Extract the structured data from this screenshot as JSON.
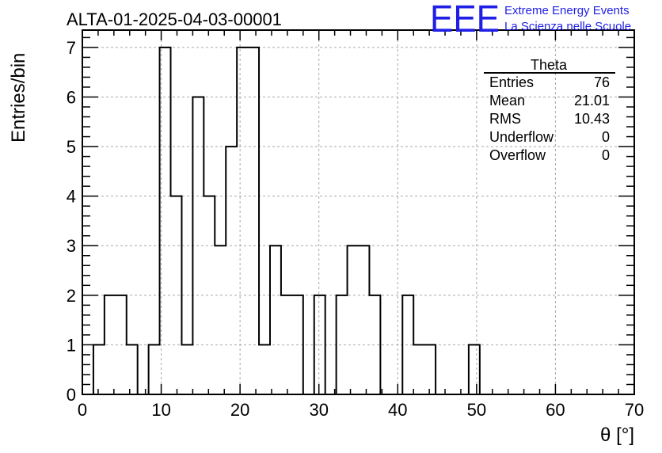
{
  "chart_data": {
    "type": "bar",
    "title": "ALTA-01-2025-04-03-00001",
    "xlabel": "θ [°]",
    "ylabel": "Entries/bin",
    "xlim": [
      0,
      70
    ],
    "ylim": [
      0,
      7.35
    ],
    "xticks": [
      0,
      10,
      20,
      30,
      40,
      50,
      60,
      70
    ],
    "yticks": [
      0,
      1,
      2,
      3,
      4,
      5,
      6,
      7
    ],
    "grid": true,
    "bin_width": 1.4,
    "bins": [
      {
        "x": 1.4,
        "y": 1
      },
      {
        "x": 2.8,
        "y": 2
      },
      {
        "x": 4.2,
        "y": 2
      },
      {
        "x": 5.6,
        "y": 1
      },
      {
        "x": 8.4,
        "y": 1
      },
      {
        "x": 9.8,
        "y": 7
      },
      {
        "x": 11.2,
        "y": 4
      },
      {
        "x": 12.6,
        "y": 1
      },
      {
        "x": 14.0,
        "y": 6
      },
      {
        "x": 15.4,
        "y": 4
      },
      {
        "x": 16.8,
        "y": 3
      },
      {
        "x": 18.2,
        "y": 5
      },
      {
        "x": 19.6,
        "y": 7
      },
      {
        "x": 21.0,
        "y": 7
      },
      {
        "x": 22.4,
        "y": 1
      },
      {
        "x": 23.8,
        "y": 3
      },
      {
        "x": 25.2,
        "y": 2
      },
      {
        "x": 26.6,
        "y": 2
      },
      {
        "x": 29.4,
        "y": 2
      },
      {
        "x": 32.2,
        "y": 2
      },
      {
        "x": 33.6,
        "y": 3
      },
      {
        "x": 35.0,
        "y": 3
      },
      {
        "x": 36.4,
        "y": 2
      },
      {
        "x": 40.6,
        "y": 2
      },
      {
        "x": 42.0,
        "y": 1
      },
      {
        "x": 43.4,
        "y": 1
      },
      {
        "x": 49.0,
        "y": 1
      }
    ],
    "stats": {
      "name": "Theta",
      "rows": [
        {
          "label": "Entries",
          "value": "76"
        },
        {
          "label": "Mean",
          "value": "21.01"
        },
        {
          "label": "RMS",
          "value": "10.43"
        },
        {
          "label": "Underflow",
          "value": "0"
        },
        {
          "label": "Overflow",
          "value": "0"
        }
      ]
    }
  },
  "logo": {
    "mark": "EEE",
    "line1": "Extreme Energy Events",
    "line2": "La Scienza nelle Scuole",
    "color": "#1f1fe6"
  }
}
